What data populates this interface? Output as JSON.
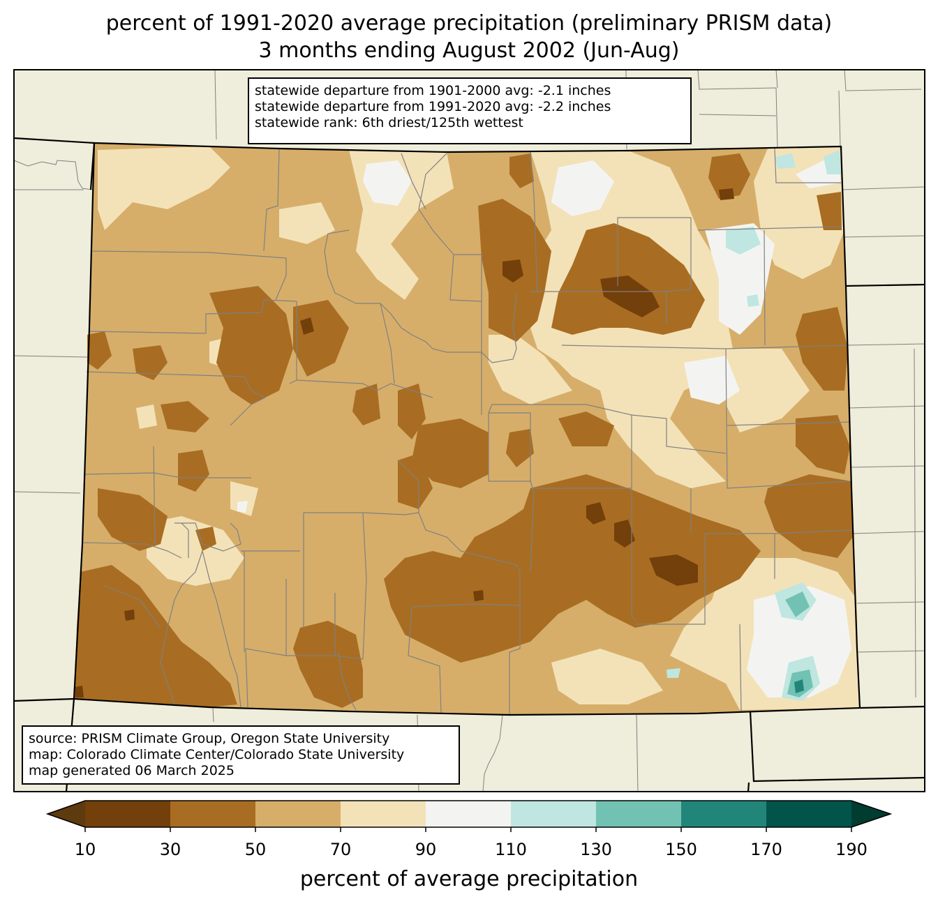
{
  "title": {
    "line1": "percent of 1991-2020 average precipitation (preliminary PRISM data)",
    "line2": "3 months ending August 2002 (Jun-Aug)"
  },
  "stats": {
    "line1": "statewide departure from 1901-2000 avg: -2.1 inches",
    "line2": "statewide departure from 1991-2020 avg: -2.2 inches",
    "line3": "statewide rank: 6th driest/125th wettest"
  },
  "source": {
    "line1": "source: PRISM Climate Group, Oregon State University",
    "line2": "map: Colorado Climate Center/Colorado State University",
    "line3": "map generated 06 March 2025"
  },
  "colorbar": {
    "label": "percent of average precipitation",
    "ticks": [
      "10",
      "30",
      "50",
      "70",
      "90",
      "110",
      "130",
      "150",
      "170",
      "190"
    ],
    "colors": [
      "#5e3a0f",
      "#733f0a",
      "#a86d22",
      "#d6ae6a",
      "#f3e2b8",
      "#f3f4f2",
      "#bfe6e0",
      "#72c2b3",
      "#22857a",
      "#01544a",
      "#003c30"
    ]
  },
  "map_colors": {
    "background": "#efeddb",
    "state_border": "#000000",
    "county_lines": "#808080"
  }
}
